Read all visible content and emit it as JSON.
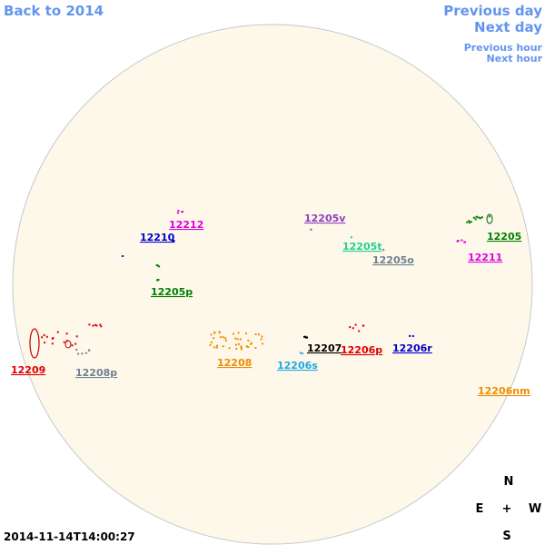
{
  "nav": {
    "back": "Back to 2014",
    "previous_day": "Previous day",
    "next_day": "Next day",
    "previous_hour": "Previous hour",
    "next_hour": "Next hour"
  },
  "regions": [
    {
      "label": "12212",
      "color": "#e000e0"
    },
    {
      "label": "12210",
      "color": "#0000cc"
    },
    {
      "label": "12205p",
      "color": "#008000"
    },
    {
      "label": "12205v",
      "color": "#9040c0"
    },
    {
      "label": "12205t",
      "color": "#20d090"
    },
    {
      "label": "12205o",
      "color": "#708090"
    },
    {
      "label": "12205",
      "color": "#008000"
    },
    {
      "label": "12211",
      "color": "#e000e0"
    },
    {
      "label": "12209",
      "color": "#e00000"
    },
    {
      "label": "12208p",
      "color": "#708090"
    },
    {
      "label": "12208",
      "color": "#f08c00"
    },
    {
      "label": "12206s",
      "color": "#20a8e0"
    },
    {
      "label": "12207",
      "color": "#000000"
    },
    {
      "label": "12206p",
      "color": "#e00000"
    },
    {
      "label": "12206r",
      "color": "#0000cc"
    },
    {
      "label": "12206nm",
      "color": "#f08c00"
    }
  ],
  "timestamp": "2014-11-14T14:00:27",
  "compass": {
    "north": "N",
    "east": "E",
    "center": "+",
    "west": "W",
    "south": "S"
  }
}
